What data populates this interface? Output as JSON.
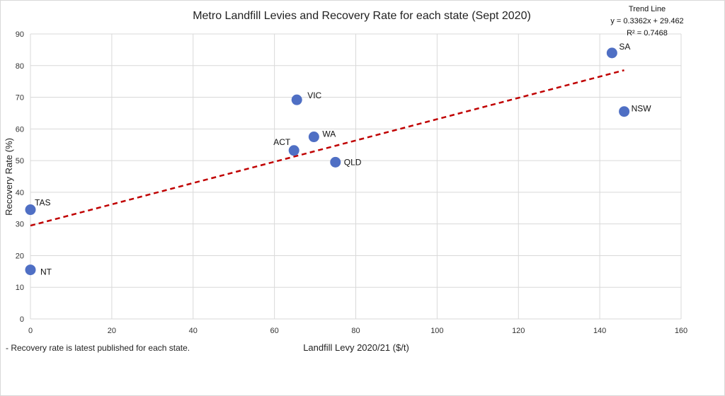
{
  "chart_data": {
    "type": "scatter",
    "title": "Metro Landfill Levies and Recovery Rate for each state (Sept 2020)",
    "xlabel": "Landfill Levy 2020/21 ($/t)",
    "ylabel": "Recovery Rate (%)",
    "xlim": [
      0,
      160
    ],
    "ylim": [
      0,
      90
    ],
    "xticks": [
      "0",
      "20",
      "40",
      "60",
      "80",
      "100",
      "120",
      "140",
      "160"
    ],
    "yticks": [
      "0",
      "10",
      "20",
      "30",
      "40",
      "50",
      "60",
      "70",
      "80",
      "90"
    ],
    "grid": true,
    "marker_color": "#4f6fc4",
    "points": [
      {
        "label": "SA",
        "x": 143,
        "y": 84
      },
      {
        "label": "NSW",
        "x": 146,
        "y": 65.5
      },
      {
        "label": "VIC",
        "x": 65.5,
        "y": 69.2
      },
      {
        "label": "WA",
        "x": 69.7,
        "y": 57.5
      },
      {
        "label": "ACT",
        "x": 64.8,
        "y": 53.2
      },
      {
        "label": "QLD",
        "x": 75,
        "y": 49.5
      },
      {
        "label": "TAS",
        "x": 0,
        "y": 34.5
      },
      {
        "label": "NT",
        "x": 0,
        "y": 15.5
      }
    ],
    "trendline": {
      "slope": 0.3362,
      "intercept": 29.462,
      "x_range": [
        0,
        146
      ],
      "color": "#c00000",
      "title": "Trend Line",
      "equation": "y = 0.3362x + 29.462",
      "r_squared": "R² = 0.7468"
    },
    "footnote": "- Recovery rate is latest published for each state."
  }
}
